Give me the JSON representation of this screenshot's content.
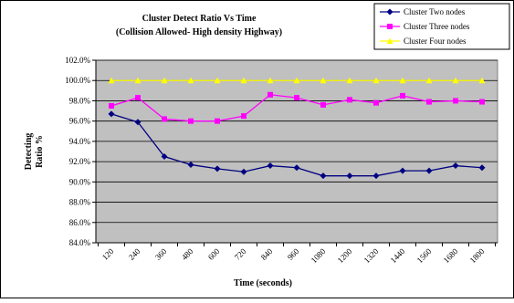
{
  "chart_data": {
    "type": "line",
    "title_lines": [
      "Cluster Detect Ratio Vs Time",
      "(Collision Allowed- High density Highway)"
    ],
    "xlabel": "Time (seconds)",
    "ylabel_lines": [
      "Detecting",
      "Ratio %"
    ],
    "x": [
      120,
      240,
      360,
      480,
      600,
      720,
      840,
      960,
      1080,
      1200,
      1320,
      1440,
      1560,
      1680,
      1800
    ],
    "x_tick_labels": [
      "120",
      "240",
      "360",
      "480",
      "600",
      "720",
      "840",
      "960",
      "1080",
      "1200",
      "1320",
      "1440",
      "1560",
      "1680",
      "1800"
    ],
    "ylim": [
      84,
      102
    ],
    "y_ticks": [
      84,
      86,
      88,
      90,
      92,
      94,
      96,
      98,
      100,
      102
    ],
    "y_tick_labels": [
      "84.0%",
      "86.0%",
      "88.0%",
      "90.0%",
      "92.0%",
      "94.0%",
      "96.0%",
      "98.0%",
      "100.0%",
      "102.0%"
    ],
    "grid": "horizontal",
    "plot_background": "#c0c0c0",
    "legend_position": "top-right",
    "series": [
      {
        "name": "Cluster Two nodes",
        "color": "#000080",
        "marker": "diamond",
        "values": [
          96.7,
          95.9,
          92.5,
          91.7,
          91.3,
          91.0,
          91.6,
          91.4,
          90.6,
          90.6,
          90.6,
          91.1,
          91.1,
          91.6,
          91.4
        ]
      },
      {
        "name": "Cluster Three nodes",
        "color": "#ff00ff",
        "marker": "square",
        "values": [
          97.5,
          98.3,
          96.2,
          96.0,
          96.0,
          96.5,
          98.6,
          98.3,
          97.6,
          98.1,
          97.8,
          98.5,
          97.9,
          98.0,
          97.9
        ]
      },
      {
        "name": "Cluster Four nodes",
        "color": "#ffff00",
        "marker": "triangle",
        "values": [
          100,
          100,
          100,
          100,
          100,
          100,
          100,
          100,
          100,
          100,
          100,
          100,
          100,
          100,
          100
        ]
      }
    ]
  }
}
